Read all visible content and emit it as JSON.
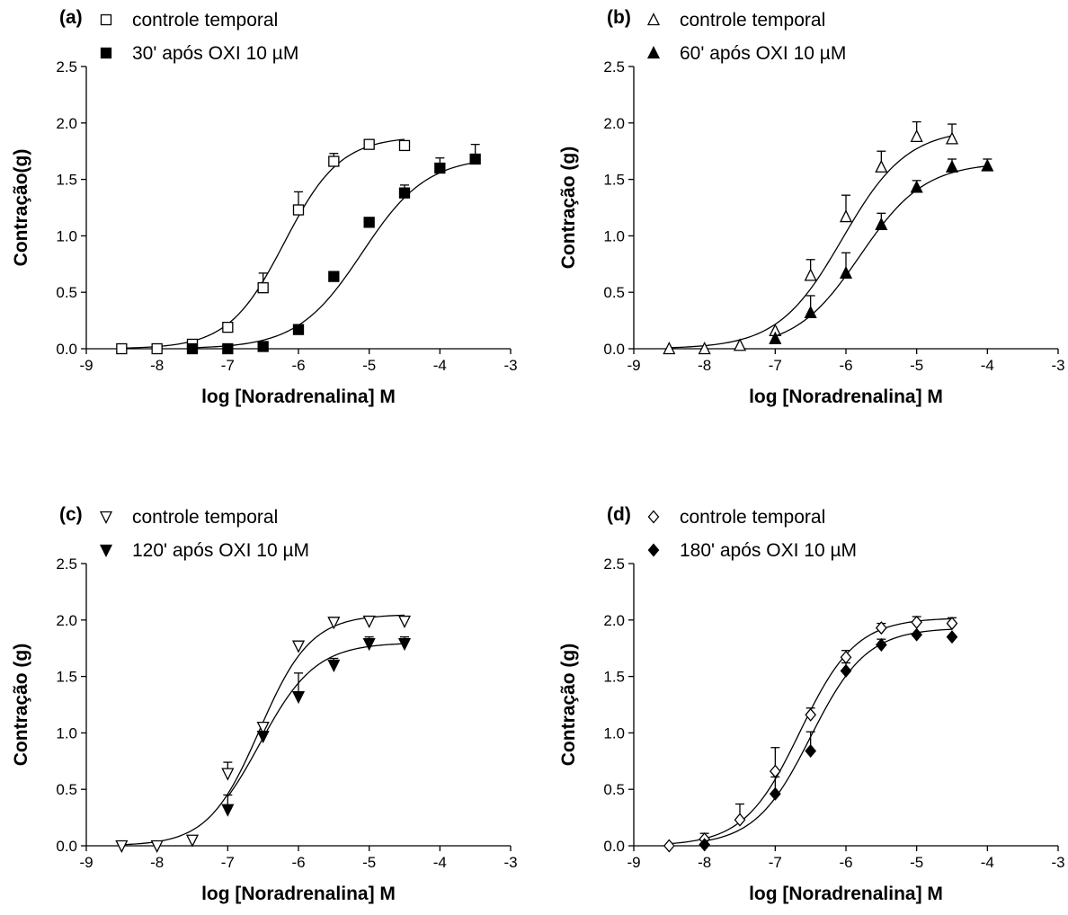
{
  "chart_data": [
    {
      "type": "scatter",
      "panel_label": "(a)",
      "xlabel": "log [Noradrenalina] M",
      "ylabel": "Contração(g)",
      "xlim": [
        -9,
        -3
      ],
      "ylim": [
        0,
        2.5
      ],
      "x_ticks": [
        -9,
        -8,
        -7,
        -6,
        -5,
        -4,
        -3
      ],
      "y_ticks": [
        0.0,
        0.5,
        1.0,
        1.5,
        2.0,
        2.5
      ],
      "x_tick_labels": [
        "-9",
        "-8",
        "-7",
        "-6",
        "-5",
        "-4",
        "-3"
      ],
      "y_tick_labels": [
        "0.0",
        "0.5",
        "1.0",
        "1.5",
        "2.0",
        "2.5"
      ],
      "legend_placement": "top-left",
      "series": [
        {
          "name": "controle temporal",
          "marker": "square-open",
          "x": [
            -8.5,
            -8,
            -7.5,
            -7,
            -6.5,
            -6,
            -5.5,
            -5,
            -4.5
          ],
          "y": [
            0.0,
            0.0,
            0.04,
            0.19,
            0.54,
            1.23,
            1.66,
            1.81,
            1.8
          ],
          "err": [
            0,
            0,
            0,
            0,
            0.13,
            0.16,
            0.07,
            0,
            0.04
          ],
          "fit": {
            "bottom": 0.0,
            "top": 1.88,
            "logEC50": -6.2,
            "hill": 1.1
          }
        },
        {
          "name": "30' após OXI 10 µM",
          "marker": "square-filled",
          "x": [
            -7.5,
            -7,
            -6.5,
            -6,
            -5.5,
            -5,
            -4.5,
            -4,
            -3.5
          ],
          "y": [
            0.0,
            0.0,
            0.02,
            0.17,
            0.64,
            1.12,
            1.38,
            1.6,
            1.68
          ],
          "err": [
            0,
            0,
            0,
            0,
            0,
            0,
            0.07,
            0.09,
            0.13
          ],
          "fit": {
            "bottom": 0.0,
            "top": 1.7,
            "logEC50": -5.1,
            "hill": 0.95
          }
        }
      ]
    },
    {
      "type": "scatter",
      "panel_label": "(b)",
      "xlabel": "log [Noradrenalina] M",
      "ylabel": "Contração (g)",
      "xlim": [
        -9,
        -3
      ],
      "ylim": [
        0,
        2.5
      ],
      "x_ticks": [
        -9,
        -8,
        -7,
        -6,
        -5,
        -4,
        -3
      ],
      "y_ticks": [
        0.0,
        0.5,
        1.0,
        1.5,
        2.0,
        2.5
      ],
      "x_tick_labels": [
        "-9",
        "-8",
        "-7",
        "-6",
        "-5",
        "-4",
        "-3"
      ],
      "y_tick_labels": [
        "0.0",
        "0.5",
        "1.0",
        "1.5",
        "2.0",
        "2.5"
      ],
      "legend_placement": "top-left",
      "series": [
        {
          "name": "controle temporal",
          "marker": "triangle-up-open",
          "x": [
            -8.5,
            -8,
            -7.5,
            -7,
            -6.5,
            -6,
            -5.5,
            -5,
            -4.5
          ],
          "y": [
            0.0,
            0.0,
            0.03,
            0.16,
            0.65,
            1.17,
            1.61,
            1.88,
            1.86
          ],
          "err": [
            0,
            0,
            0,
            0,
            0.14,
            0.19,
            0.14,
            0.13,
            0.13
          ],
          "fit": {
            "bottom": 0.0,
            "top": 1.95,
            "logEC50": -6.05,
            "hill": 0.95
          }
        },
        {
          "name": "60' após OXI 10 µM",
          "marker": "triangle-up-filled",
          "x": [
            -7,
            -6.5,
            -6,
            -5.5,
            -5,
            -4.5,
            -4
          ],
          "y": [
            0.09,
            0.32,
            0.67,
            1.1,
            1.43,
            1.61,
            1.62
          ],
          "err": [
            0,
            0.15,
            0.18,
            0.1,
            0.06,
            0.07,
            0.06
          ],
          "fit": {
            "bottom": 0.0,
            "top": 1.65,
            "logEC50": -5.8,
            "hill": 0.95
          }
        }
      ]
    },
    {
      "type": "scatter",
      "panel_label": "(c)",
      "xlabel": "log [Noradrenalina] M",
      "ylabel": "Contração (g)",
      "xlim": [
        -9,
        -3
      ],
      "ylim": [
        0,
        2.5
      ],
      "x_ticks": [
        -9,
        -8,
        -7,
        -6,
        -5,
        -4,
        -3
      ],
      "y_ticks": [
        0.0,
        0.5,
        1.0,
        1.5,
        2.0,
        2.5
      ],
      "x_tick_labels": [
        "-9",
        "-8",
        "-7",
        "-6",
        "-5",
        "-4",
        "-3"
      ],
      "y_tick_labels": [
        "0.0",
        "0.5",
        "1.0",
        "1.5",
        "2.0",
        "2.5"
      ],
      "legend_placement": "top-left",
      "series": [
        {
          "name": "controle temporal",
          "marker": "triangle-down-open",
          "x": [
            -8.5,
            -8,
            -7.5,
            -7,
            -6.5,
            -6,
            -5.5,
            -5,
            -4.5
          ],
          "y": [
            0.0,
            0.0,
            0.05,
            0.64,
            1.05,
            1.77,
            1.98,
            1.99,
            1.99
          ],
          "err": [
            0,
            0,
            0,
            0.1,
            0,
            0,
            0,
            0,
            0
          ],
          "fit": {
            "bottom": 0.0,
            "top": 2.05,
            "logEC50": -6.55,
            "hill": 1.2
          }
        },
        {
          "name": "120' após OXI 10 µM",
          "marker": "triangle-down-filled",
          "x": [
            -7,
            -6.5,
            -6,
            -5.5,
            -5,
            -4.5
          ],
          "y": [
            0.32,
            0.97,
            1.32,
            1.6,
            1.79,
            1.79
          ],
          "err": [
            0.13,
            0,
            0.21,
            0.06,
            0.06,
            0.06
          ],
          "fit": {
            "bottom": 0.0,
            "top": 1.8,
            "logEC50": -6.55,
            "hill": 1.1
          }
        }
      ]
    },
    {
      "type": "scatter",
      "panel_label": "(d)",
      "xlabel": "log [Noradrenalina] M",
      "ylabel": "Contração (g)",
      "xlim": [
        -9,
        -3
      ],
      "ylim": [
        0,
        2.5
      ],
      "x_ticks": [
        -9,
        -8,
        -7,
        -6,
        -5,
        -4,
        -3
      ],
      "y_ticks": [
        0.0,
        0.5,
        1.0,
        1.5,
        2.0,
        2.5
      ],
      "x_tick_labels": [
        "-9",
        "-8",
        "-7",
        "-6",
        "-5",
        "-4",
        "-3"
      ],
      "y_tick_labels": [
        "0.0",
        "0.5",
        "1.0",
        "1.5",
        "2.0",
        "2.5"
      ],
      "legend_placement": "top-left",
      "series": [
        {
          "name": "controle temporal",
          "marker": "diamond-open",
          "x": [
            -8.5,
            -8,
            -7.5,
            -7,
            -6.5,
            -6,
            -5.5,
            -5,
            -4.5
          ],
          "y": [
            0.0,
            0.06,
            0.23,
            0.66,
            1.16,
            1.67,
            1.93,
            1.98,
            1.97
          ],
          "err": [
            0,
            0.05,
            0.14,
            0.21,
            0.06,
            0.06,
            0.04,
            0.05,
            0.05
          ],
          "fit": {
            "bottom": 0.0,
            "top": 2.02,
            "logEC50": -6.65,
            "hill": 1.1
          }
        },
        {
          "name": "180' após OXI 10 µM",
          "marker": "diamond-filled",
          "x": [
            -8,
            -7,
            -6.5,
            -6,
            -5.5,
            -5,
            -4.5
          ],
          "y": [
            0.01,
            0.46,
            0.84,
            1.55,
            1.78,
            1.87,
            1.85
          ],
          "err": [
            0,
            0.15,
            0.17,
            0.07,
            0.05,
            0,
            0
          ],
          "fit": {
            "bottom": 0.0,
            "top": 1.93,
            "logEC50": -6.5,
            "hill": 1.1
          }
        }
      ]
    }
  ]
}
